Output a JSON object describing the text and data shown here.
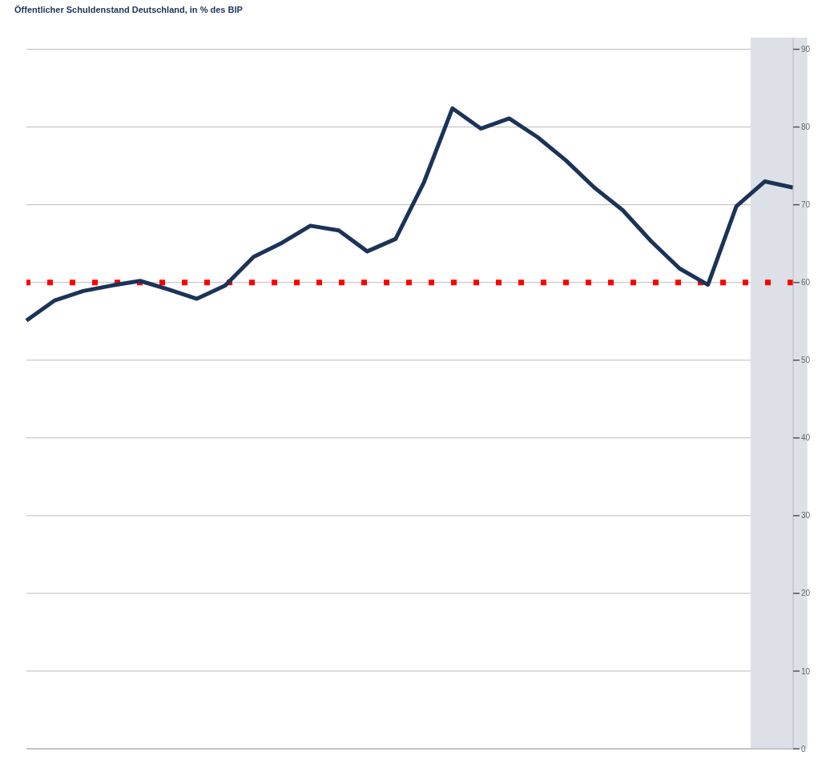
{
  "chart_data": {
    "type": "line",
    "title": "Öffentlicher Schuldenstand Deutschland, in % des BIP",
    "categories": [
      null,
      null,
      null,
      null,
      null,
      null,
      null,
      null,
      null,
      null,
      null,
      null,
      null,
      null,
      null,
      null,
      null,
      null,
      null,
      null,
      null,
      null,
      null,
      null,
      null,
      null,
      null,
      null
    ],
    "series": [
      {
        "color": "#1b3358",
        "values": [
          55.1,
          57.7,
          58.9,
          59.6,
          60.2,
          59.1,
          57.9,
          59.6,
          63.3,
          65.1,
          67.3,
          66.7,
          64.0,
          65.6,
          72.9,
          82.4,
          79.8,
          81.1,
          78.7,
          75.7,
          72.2,
          69.3,
          65.3,
          61.8,
          59.7,
          69.8,
          73.0,
          72.2
        ]
      }
    ],
    "ylim": [
      0,
      91.5
    ],
    "yticks": [
      0,
      10,
      20,
      30,
      40,
      50,
      60,
      70,
      80,
      90
    ],
    "grid": "y",
    "marker": "none",
    "line_style": "solid",
    "ref_lines": [
      {
        "axis": "y",
        "value": 60,
        "color": "#ff0000",
        "line_style": "dotted"
      }
    ]
  }
}
